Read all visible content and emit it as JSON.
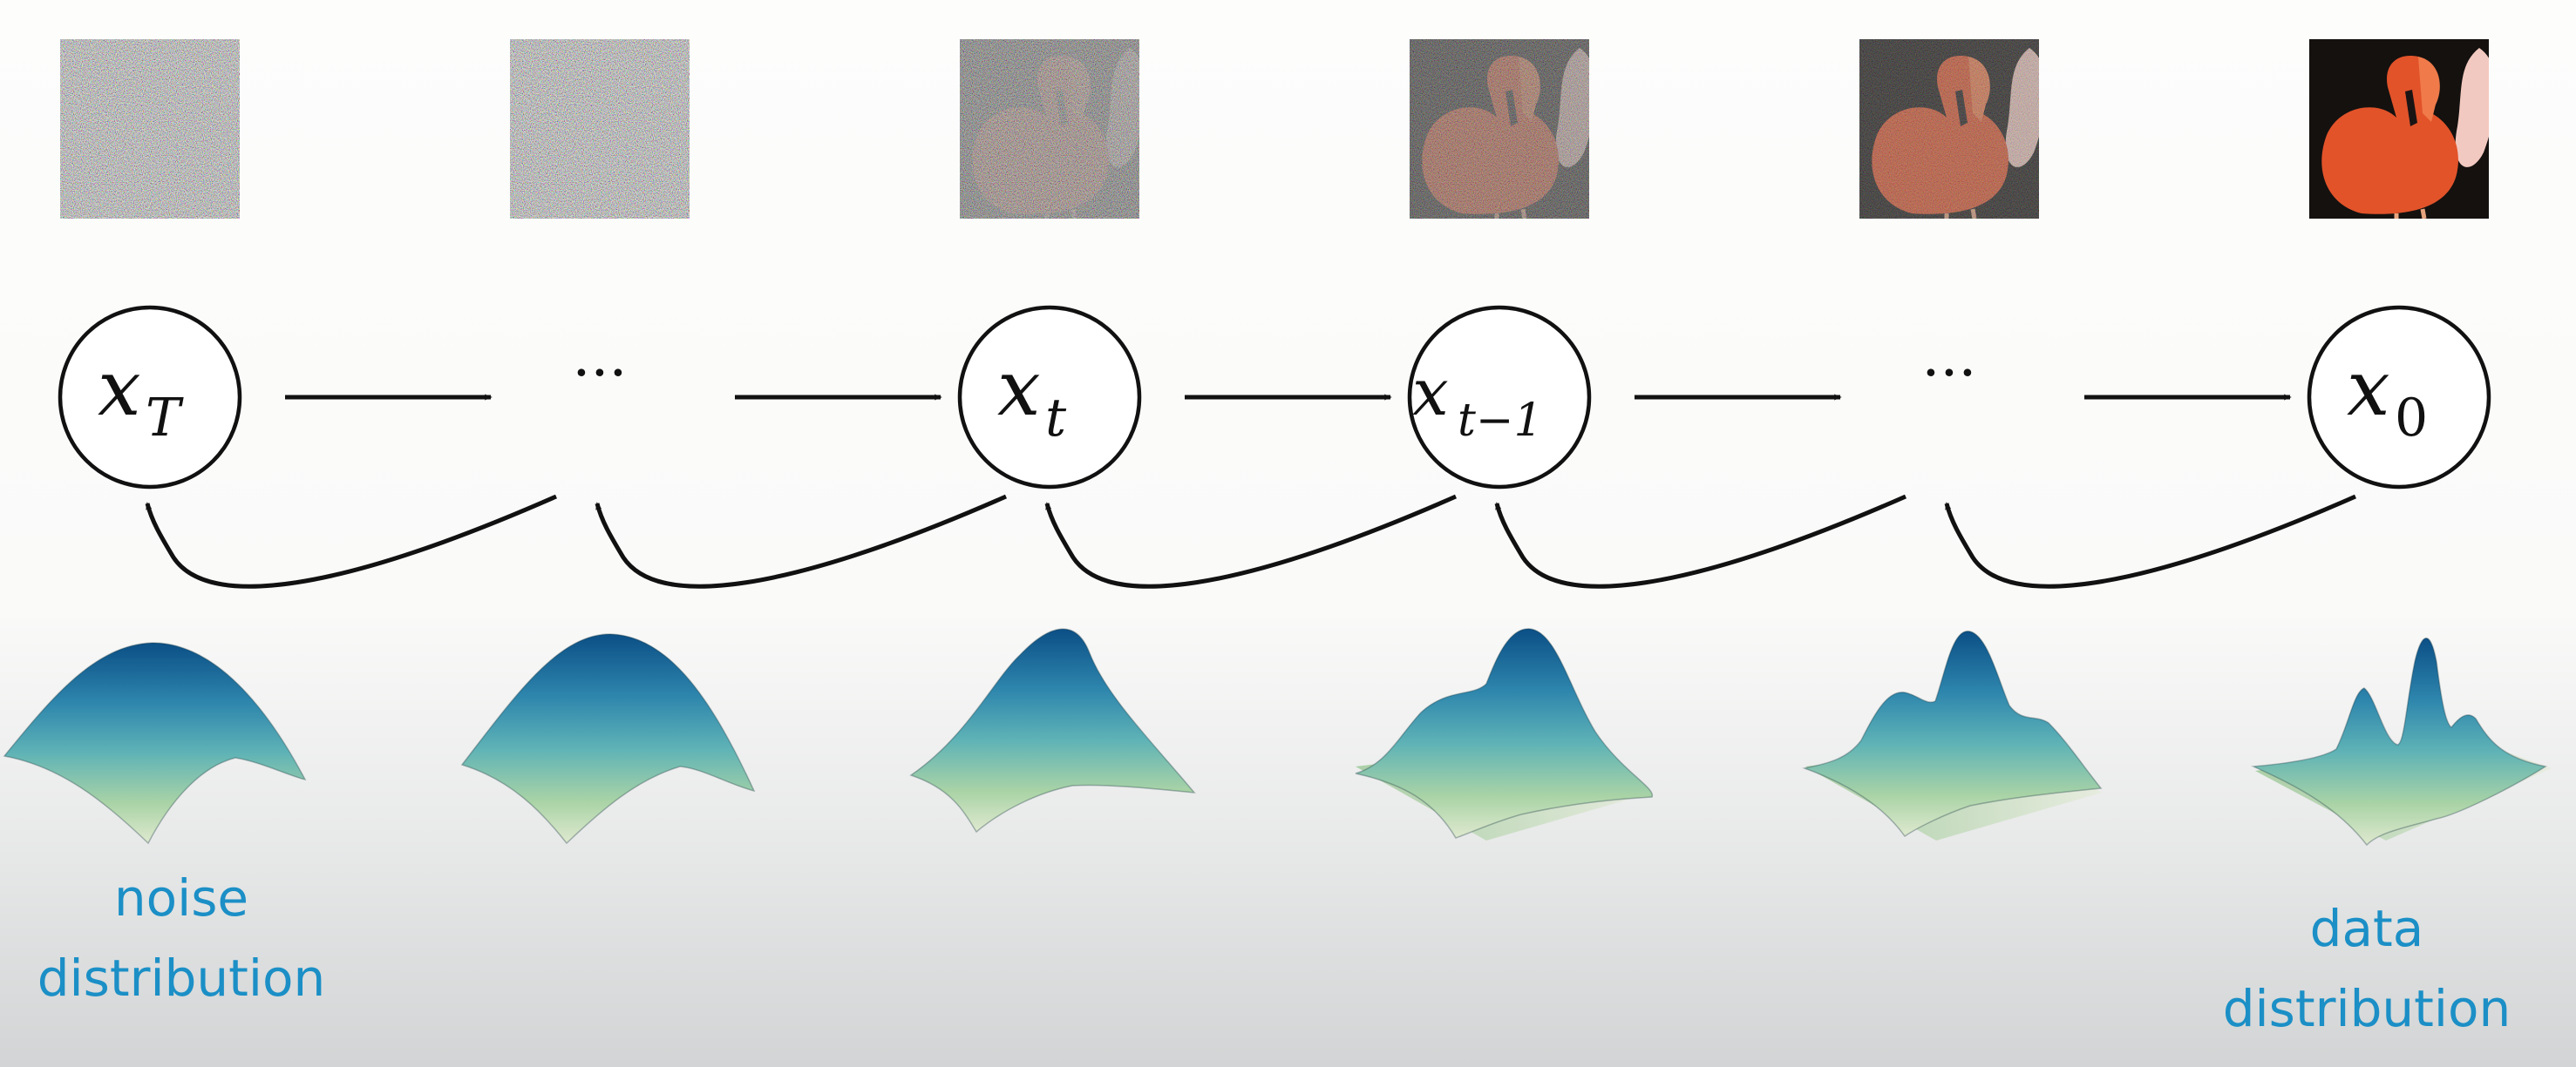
{
  "thumbnails": [
    {
      "noise": 1.0,
      "content": 0.0
    },
    {
      "noise": 1.0,
      "content": 0.0
    },
    {
      "noise": 0.78,
      "content": 0.22
    },
    {
      "noise": 0.55,
      "content": 0.45
    },
    {
      "noise": 0.35,
      "content": 0.65
    },
    {
      "noise": 0.0,
      "content": 1.0
    }
  ],
  "nodes": [
    {
      "type": "variable",
      "symbol": "x",
      "subscript": "T"
    },
    {
      "type": "ellipsis",
      "symbol": "···"
    },
    {
      "type": "variable",
      "symbol": "x",
      "subscript": "t"
    },
    {
      "type": "variable",
      "symbol": "x",
      "subscript": "t−1"
    },
    {
      "type": "ellipsis",
      "symbol": "···"
    },
    {
      "type": "variable",
      "symbol": "x",
      "subscript": "0"
    }
  ],
  "distributions": [
    {
      "modes": 1,
      "shape": "broad"
    },
    {
      "modes": 1,
      "shape": "broad"
    },
    {
      "modes": 1,
      "shape": "skewed"
    },
    {
      "modes": 2,
      "shape": "bimodal"
    },
    {
      "modes": 3,
      "shape": "trimodal-soft"
    },
    {
      "modes": 3,
      "shape": "trimodal-sharp"
    }
  ],
  "captions": {
    "left": {
      "line1": "noise",
      "line2": "distribution"
    },
    "right": {
      "line1": "data",
      "line2": "distribution"
    }
  },
  "colors": {
    "caption": "#1b8fc6",
    "surface_top": "#0b4f86",
    "surface_mid": "#3fa6b8",
    "surface_low": "#b8dba8",
    "surface_base": "#e4ecd8",
    "flamingo": "#e2532a"
  }
}
